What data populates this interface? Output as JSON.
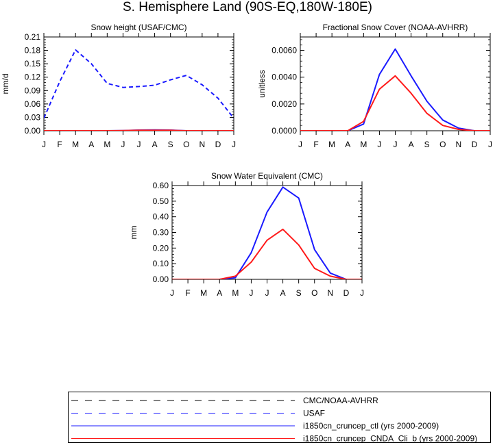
{
  "main_title": "S. Hemisphere Land (90S-EQ,180W-180E)",
  "months": [
    "J",
    "F",
    "M",
    "A",
    "M",
    "J",
    "J",
    "A",
    "S",
    "O",
    "N",
    "D",
    "J"
  ],
  "colors": {
    "obs": "#000000",
    "usaf": "#1a1aff",
    "ctl": "#1a1aff",
    "cnda": "#ff1a1a"
  },
  "legend": {
    "items": [
      {
        "label": "CMC/NOAA-AVHRR",
        "color": "#000000",
        "dash": true
      },
      {
        "label": "USAF",
        "color": "#1a1aff",
        "dash": true
      },
      {
        "label": "i1850cn_cruncep_ctl (yrs 2000-2009)",
        "color": "#1a1aff",
        "dash": false
      },
      {
        "label": "i1850cn_cruncep_CNDA_Cli_b (yrs 2000-2009)",
        "color": "#ff1a1a",
        "dash": false
      }
    ]
  },
  "chart_data": [
    {
      "type": "line",
      "title": "Snow height (USAF/CMC)",
      "ylabel": "mm/d",
      "x": [
        "J",
        "F",
        "M",
        "A",
        "M",
        "J",
        "J",
        "A",
        "S",
        "O",
        "N",
        "D",
        "J"
      ],
      "ylim": [
        0,
        0.21
      ],
      "yticks": [
        "0.00",
        "0.03",
        "0.06",
        "0.09",
        "0.12",
        "0.15",
        "0.18",
        "0.21"
      ],
      "series": [
        {
          "name": "USAF",
          "dash": true,
          "color": "#1a1aff",
          "values": [
            0.028,
            0.11,
            0.181,
            0.15,
            0.106,
            0.097,
            0.099,
            0.102,
            0.114,
            0.124,
            0.103,
            0.073,
            0.028
          ]
        },
        {
          "name": "i1850cn_cruncep_ctl (yrs 2000-2009)",
          "dash": false,
          "color": "#1a1aff",
          "values": [
            0.0,
            0.0,
            0.0,
            0.0,
            0.0,
            0.0005,
            0.0015,
            0.002,
            0.0015,
            0.0,
            0.0,
            0.0,
            0.0
          ]
        },
        {
          "name": "i1850cn_cruncep_CNDA_Cli_b (yrs 2000-2009)",
          "dash": false,
          "color": "#ff1a1a",
          "values": [
            0.0,
            0.0,
            0.0,
            0.0,
            0.0,
            0.0003,
            0.001,
            0.0012,
            0.001,
            0.0,
            0.0,
            0.0,
            0.0
          ]
        }
      ]
    },
    {
      "type": "line",
      "title": "Fractional Snow Cover (NOAA-AVHRR)",
      "ylabel": "unitless",
      "x": [
        "J",
        "F",
        "M",
        "A",
        "M",
        "J",
        "J",
        "A",
        "S",
        "O",
        "N",
        "D",
        "J"
      ],
      "ylim": [
        0,
        0.007
      ],
      "yticks": [
        "0.0000",
        "0.0020",
        "0.0040",
        "0.0060"
      ],
      "ytick_values": [
        0,
        0.002,
        0.004,
        0.006
      ],
      "series": [
        {
          "name": "i1850cn_cruncep_ctl (yrs 2000-2009)",
          "dash": false,
          "color": "#1a1aff",
          "values": [
            0.0,
            0.0,
            0.0,
            0.0,
            0.0005,
            0.0042,
            0.0061,
            0.0041,
            0.0022,
            0.0008,
            0.0002,
            0.0,
            0.0
          ]
        },
        {
          "name": "i1850cn_cruncep_CNDA_Cli_b (yrs 2000-2009)",
          "dash": false,
          "color": "#ff1a1a",
          "values": [
            0.0,
            0.0,
            0.0,
            0.0,
            0.0007,
            0.0031,
            0.0041,
            0.0028,
            0.0013,
            0.0004,
            0.0001,
            0.0,
            0.0
          ]
        }
      ]
    },
    {
      "type": "line",
      "title": "Snow Water Equivalent (CMC)",
      "ylabel": "mm",
      "x": [
        "J",
        "F",
        "M",
        "A",
        "M",
        "J",
        "J",
        "A",
        "S",
        "O",
        "N",
        "D",
        "J"
      ],
      "ylim": [
        0,
        0.6
      ],
      "yticks": [
        "0.00",
        "0.10",
        "0.20",
        "0.30",
        "0.40",
        "0.50",
        "0.60"
      ],
      "ytick_values": [
        0,
        0.1,
        0.2,
        0.3,
        0.4,
        0.5,
        0.6
      ],
      "series": [
        {
          "name": "i1850cn_cruncep_ctl (yrs 2000-2009)",
          "dash": false,
          "color": "#1a1aff",
          "values": [
            0.0,
            0.0,
            0.0,
            0.0,
            0.01,
            0.17,
            0.43,
            0.59,
            0.52,
            0.19,
            0.04,
            0.0,
            0.0
          ]
        },
        {
          "name": "i1850cn_cruncep_CNDA_Cli_b (yrs 2000-2009)",
          "dash": false,
          "color": "#ff1a1a",
          "values": [
            0.0,
            0.0,
            0.0,
            0.0,
            0.02,
            0.11,
            0.25,
            0.32,
            0.22,
            0.07,
            0.02,
            0.0,
            0.0
          ]
        }
      ]
    }
  ]
}
